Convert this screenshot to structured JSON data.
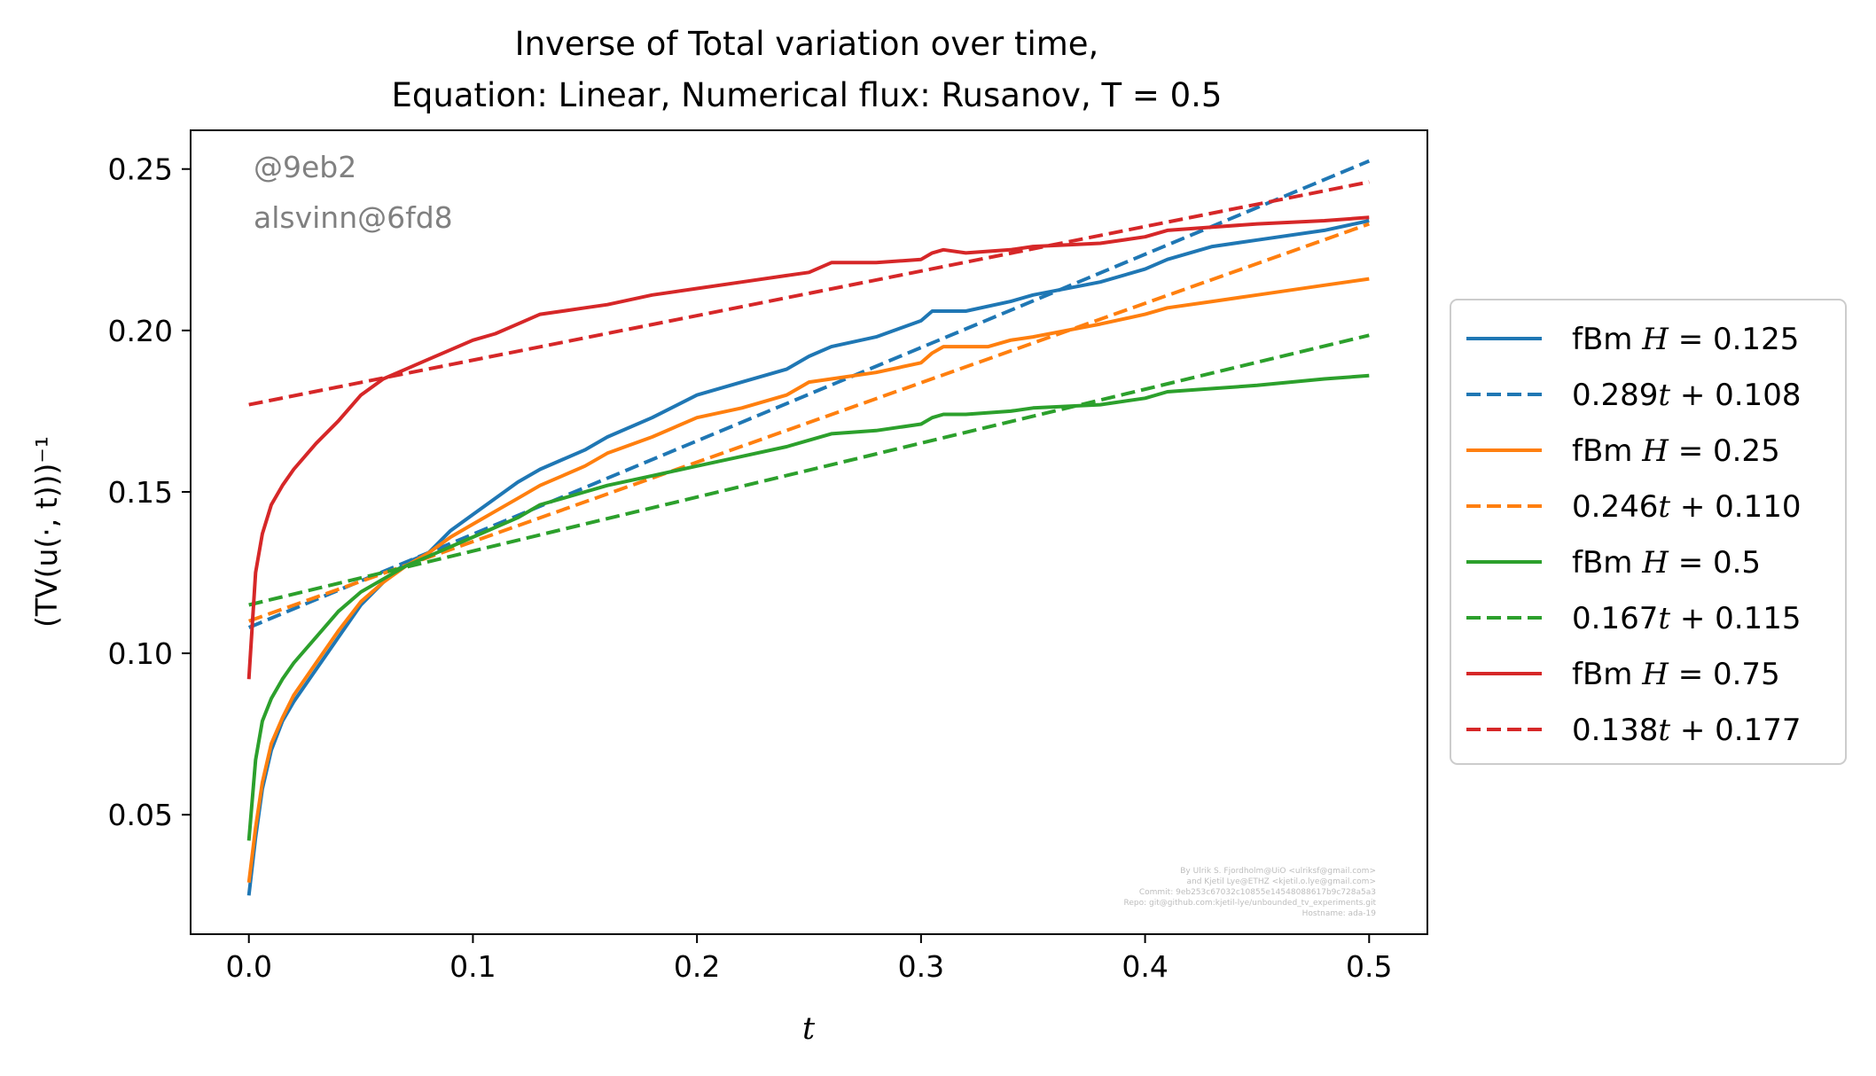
{
  "chart_data": {
    "type": "line",
    "title": "Inverse of Total variation over time,",
    "subtitle": "Equation: Linear, Numerical flux: Rusanov, T = 0.5",
    "xlabel": "t",
    "ylabel": "(TV(u(·, t)))⁻¹",
    "xlim": [
      -0.026,
      0.526
    ],
    "ylim": [
      0.013,
      0.262
    ],
    "xticks": [
      0.0,
      0.1,
      0.2,
      0.3,
      0.4,
      0.5
    ],
    "xtick_labels": [
      "0.0",
      "0.1",
      "0.2",
      "0.3",
      "0.4",
      "0.5"
    ],
    "yticks": [
      0.05,
      0.1,
      0.15,
      0.2,
      0.25
    ],
    "ytick_labels": [
      "0.05",
      "0.10",
      "0.15",
      "0.20",
      "0.25"
    ],
    "grid": false,
    "legend_position": "outside-right",
    "watermark": [
      "@9eb2",
      "alsvinn@6fd8"
    ],
    "credits": [
      "By Ulrik S. Fjordholm@UiO <ulriksf@gmail.com>",
      "and Kjetil Lye@ETHZ <kjetil.o.lye@gmail.com>",
      "Commit: 9eb253c67032c10855e14548088617b9c728a5a3",
      "Repo: git@github.com:kjetil-lye/unbounded_tv_experiments.git",
      "Hostname: ada-19"
    ],
    "series": [
      {
        "name": "fBm H = 0.125",
        "style": "solid",
        "color": "#1f77b4",
        "x": [
          0.0,
          0.003,
          0.006,
          0.01,
          0.015,
          0.02,
          0.03,
          0.04,
          0.05,
          0.06,
          0.07,
          0.08,
          0.09,
          0.1,
          0.11,
          0.12,
          0.13,
          0.14,
          0.15,
          0.16,
          0.18,
          0.2,
          0.22,
          0.24,
          0.25,
          0.26,
          0.28,
          0.3,
          0.305,
          0.31,
          0.32,
          0.34,
          0.35,
          0.38,
          0.4,
          0.41,
          0.43,
          0.45,
          0.48,
          0.5
        ],
        "y": [
          0.025,
          0.043,
          0.058,
          0.07,
          0.079,
          0.085,
          0.095,
          0.105,
          0.115,
          0.122,
          0.128,
          0.131,
          0.138,
          0.143,
          0.148,
          0.153,
          0.157,
          0.16,
          0.163,
          0.167,
          0.173,
          0.18,
          0.184,
          0.188,
          0.192,
          0.195,
          0.198,
          0.203,
          0.206,
          0.206,
          0.206,
          0.209,
          0.211,
          0.215,
          0.219,
          0.222,
          0.226,
          0.228,
          0.231,
          0.234
        ]
      },
      {
        "name": "0.289t + 0.108",
        "style": "dashed",
        "color": "#1f77b4",
        "x": [
          0.0,
          0.5
        ],
        "y": [
          0.108,
          0.2525
        ]
      },
      {
        "name": "fBm H = 0.25",
        "style": "solid",
        "color": "#ff7f0e",
        "x": [
          0.0,
          0.003,
          0.006,
          0.01,
          0.015,
          0.02,
          0.03,
          0.04,
          0.05,
          0.06,
          0.07,
          0.08,
          0.09,
          0.1,
          0.11,
          0.12,
          0.13,
          0.14,
          0.15,
          0.16,
          0.18,
          0.2,
          0.22,
          0.24,
          0.25,
          0.26,
          0.28,
          0.3,
          0.305,
          0.31,
          0.33,
          0.34,
          0.35,
          0.38,
          0.4,
          0.41,
          0.43,
          0.45,
          0.48,
          0.5
        ],
        "y": [
          0.029,
          0.046,
          0.06,
          0.072,
          0.08,
          0.087,
          0.097,
          0.107,
          0.116,
          0.122,
          0.127,
          0.131,
          0.136,
          0.14,
          0.144,
          0.148,
          0.152,
          0.155,
          0.158,
          0.162,
          0.167,
          0.173,
          0.176,
          0.18,
          0.184,
          0.185,
          0.187,
          0.19,
          0.193,
          0.195,
          0.195,
          0.197,
          0.198,
          0.202,
          0.205,
          0.207,
          0.209,
          0.211,
          0.214,
          0.216
        ]
      },
      {
        "name": "0.246t + 0.110",
        "style": "dashed",
        "color": "#ff7f0e",
        "x": [
          0.0,
          0.5
        ],
        "y": [
          0.11,
          0.233
        ]
      },
      {
        "name": "fBm H = 0.5",
        "style": "solid",
        "color": "#2ca02c",
        "x": [
          0.0,
          0.003,
          0.006,
          0.01,
          0.015,
          0.02,
          0.03,
          0.04,
          0.05,
          0.06,
          0.07,
          0.08,
          0.09,
          0.1,
          0.11,
          0.12,
          0.13,
          0.14,
          0.15,
          0.16,
          0.18,
          0.2,
          0.22,
          0.24,
          0.25,
          0.26,
          0.28,
          0.3,
          0.305,
          0.31,
          0.32,
          0.34,
          0.35,
          0.38,
          0.4,
          0.41,
          0.43,
          0.45,
          0.48,
          0.5
        ],
        "y": [
          0.042,
          0.067,
          0.079,
          0.086,
          0.092,
          0.097,
          0.105,
          0.113,
          0.119,
          0.123,
          0.127,
          0.13,
          0.133,
          0.136,
          0.139,
          0.142,
          0.146,
          0.148,
          0.15,
          0.152,
          0.155,
          0.158,
          0.161,
          0.164,
          0.166,
          0.168,
          0.169,
          0.171,
          0.173,
          0.174,
          0.174,
          0.175,
          0.176,
          0.177,
          0.179,
          0.181,
          0.182,
          0.183,
          0.185,
          0.186
        ]
      },
      {
        "name": "0.167t + 0.115",
        "style": "dashed",
        "color": "#2ca02c",
        "x": [
          0.0,
          0.5
        ],
        "y": [
          0.115,
          0.1985
        ]
      },
      {
        "name": "fBm H = 0.75",
        "style": "solid",
        "color": "#d62728",
        "x": [
          0.0,
          0.003,
          0.006,
          0.01,
          0.015,
          0.02,
          0.03,
          0.04,
          0.05,
          0.06,
          0.07,
          0.08,
          0.09,
          0.1,
          0.11,
          0.12,
          0.13,
          0.14,
          0.15,
          0.16,
          0.18,
          0.2,
          0.22,
          0.24,
          0.25,
          0.26,
          0.28,
          0.3,
          0.305,
          0.31,
          0.32,
          0.34,
          0.35,
          0.38,
          0.4,
          0.41,
          0.43,
          0.45,
          0.48,
          0.5
        ],
        "y": [
          0.092,
          0.125,
          0.137,
          0.146,
          0.152,
          0.157,
          0.165,
          0.172,
          0.18,
          0.185,
          0.188,
          0.191,
          0.194,
          0.197,
          0.199,
          0.202,
          0.205,
          0.206,
          0.207,
          0.208,
          0.211,
          0.213,
          0.215,
          0.217,
          0.218,
          0.221,
          0.221,
          0.222,
          0.224,
          0.225,
          0.224,
          0.225,
          0.226,
          0.227,
          0.229,
          0.231,
          0.232,
          0.233,
          0.234,
          0.235
        ]
      },
      {
        "name": "0.138t + 0.177",
        "style": "dashed",
        "color": "#d62728",
        "x": [
          0.0,
          0.5
        ],
        "y": [
          0.177,
          0.246
        ]
      }
    ],
    "legend": [
      {
        "prefix": "fBm ",
        "math": "H = 0.125",
        "series": 0
      },
      {
        "prefix": "",
        "math": "0.289t + 0.108",
        "series": 1
      },
      {
        "prefix": "fBm ",
        "math": "H = 0.25",
        "series": 2
      },
      {
        "prefix": "",
        "math": "0.246t + 0.110",
        "series": 3
      },
      {
        "prefix": "fBm ",
        "math": "H = 0.5",
        "series": 4
      },
      {
        "prefix": "",
        "math": "0.167t + 0.115",
        "series": 5
      },
      {
        "prefix": "fBm ",
        "math": "H = 0.75",
        "series": 6
      },
      {
        "prefix": "",
        "math": "0.138t + 0.177",
        "series": 7
      }
    ]
  }
}
